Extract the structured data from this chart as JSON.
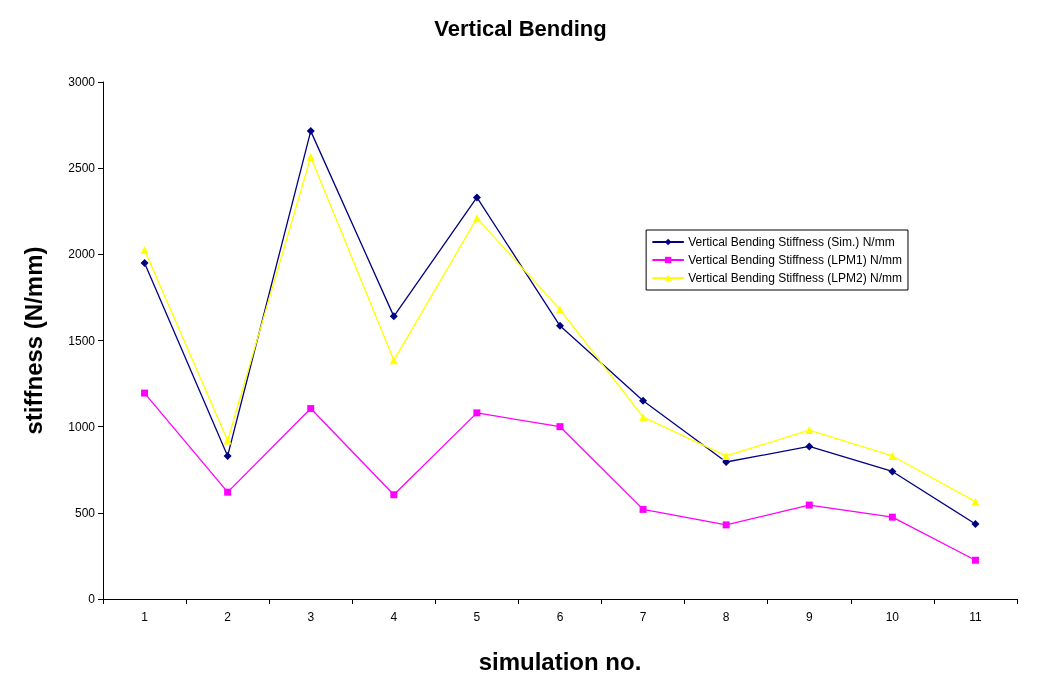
{
  "chart_data": {
    "type": "line",
    "title": "Vertical Bending",
    "xlabel": "simulation no.",
    "ylabel": "stiffness (N/mm)",
    "categories": [
      "1",
      "2",
      "3",
      "4",
      "5",
      "6",
      "7",
      "8",
      "9",
      "10",
      "11"
    ],
    "series": [
      {
        "name": "Vertical Bending Stiffness (Sim.) N/mm",
        "color": "#000080",
        "marker": "diamond",
        "values": [
          1950,
          830,
          2715,
          1640,
          2330,
          1585,
          1150,
          795,
          885,
          740,
          435
        ]
      },
      {
        "name": "Vertical Bending Stiffness (LPM1) N/mm",
        "color": "#ff00ff",
        "marker": "square",
        "values": [
          1195,
          620,
          1105,
          605,
          1080,
          1000,
          520,
          430,
          545,
          475,
          225
        ]
      },
      {
        "name": "Vertical Bending Stiffness (LPM2) N/mm",
        "color": "#ffff00",
        "marker": "triangle",
        "values": [
          2025,
          920,
          2565,
          1385,
          2210,
          1680,
          1055,
          830,
          980,
          830,
          565
        ]
      }
    ],
    "ylim": [
      0,
      3000
    ],
    "yticks": [
      0,
      500,
      1000,
      1500,
      2000,
      2500,
      3000
    ],
    "grid": false,
    "legend": "right",
    "line_style": "solid"
  }
}
